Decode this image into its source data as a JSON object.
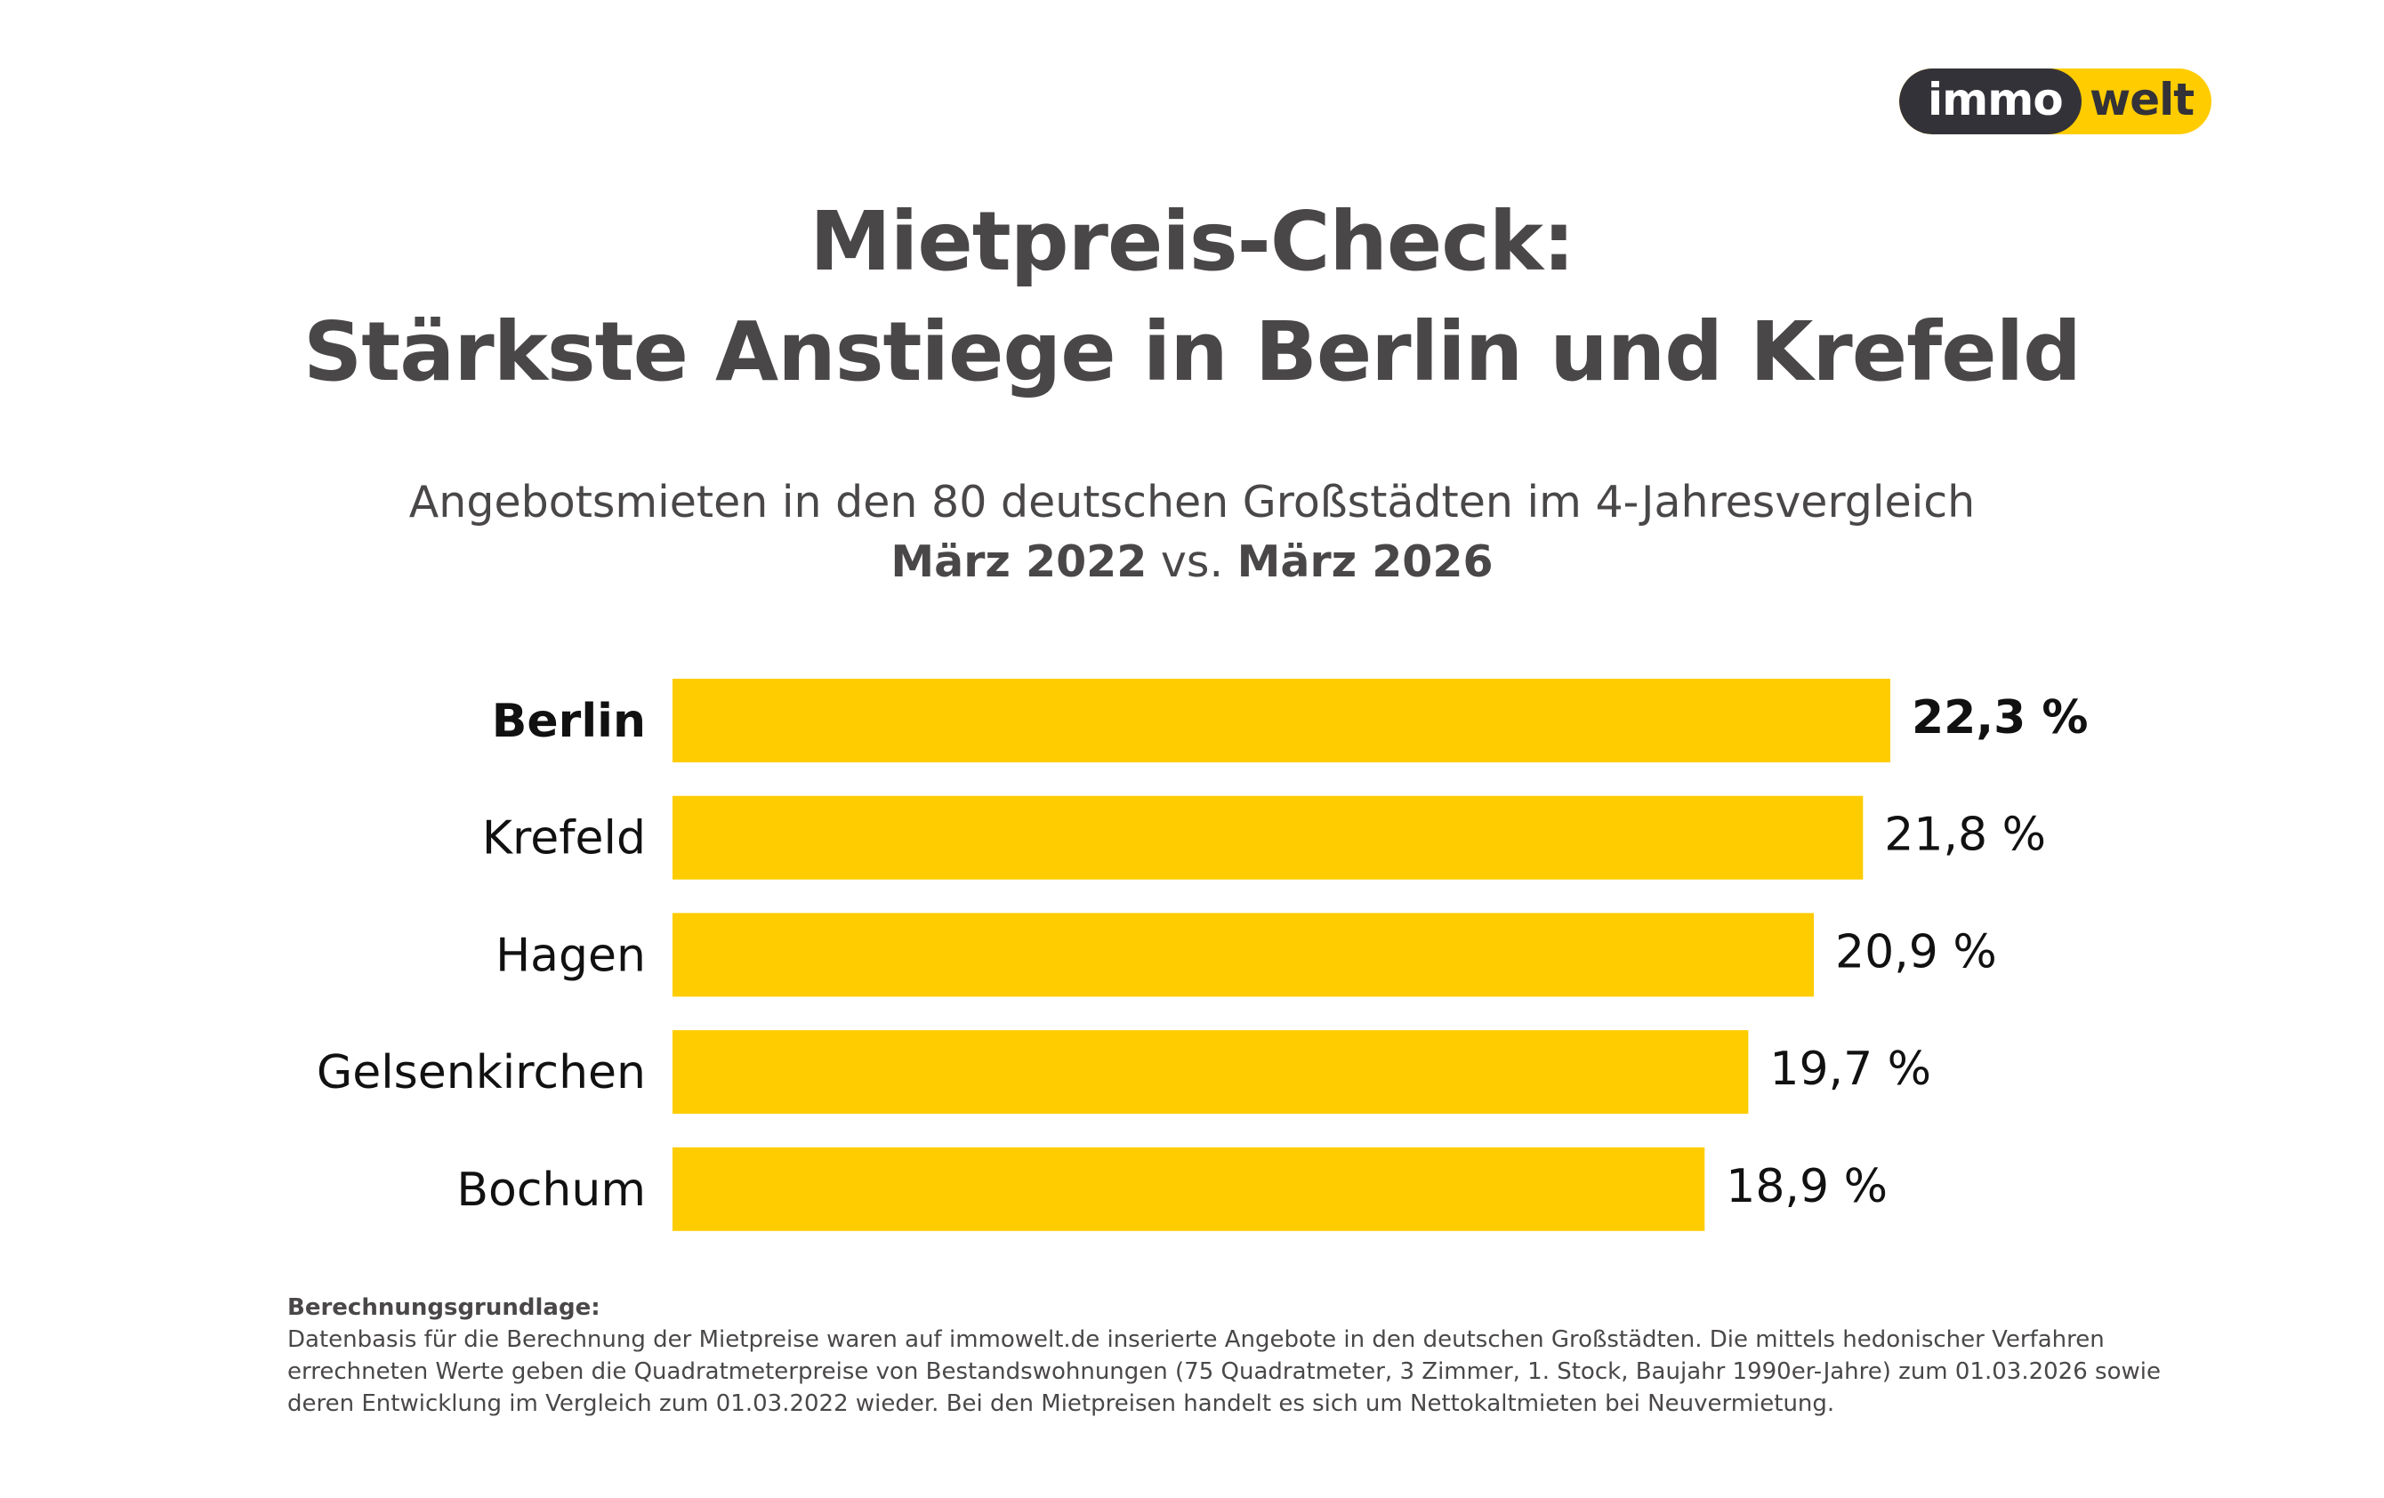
{
  "logo": {
    "part1": "immo",
    "part2": "welt",
    "colors": {
      "dark": "#333238",
      "yellow": "#ffcc00"
    }
  },
  "header": {
    "title_line1": "Mietpreis-Check:",
    "title_line2": "Stärkste Anstiege in Berlin und Krefeld",
    "subtitle_line1": "Angebotsmieten in den 80 deutschen Großstädten im 4-Jahresvergleich",
    "subtitle_from": "März 2022",
    "subtitle_vs": " vs. ",
    "subtitle_to": "März 2026"
  },
  "chart_data": {
    "type": "bar",
    "orientation": "horizontal",
    "title": "Mietpreis-Check: Stärkste Anstiege in Berlin und Krefeld",
    "subtitle": "Angebotsmieten in den 80 deutschen Großstädten im 4-Jahresvergleich, März 2022 vs. März 2026",
    "categories": [
      "Berlin",
      "Krefeld",
      "Hagen",
      "Gelsenkirchen",
      "Bochum"
    ],
    "values": [
      22.3,
      21.8,
      20.9,
      19.7,
      18.9
    ],
    "value_labels": [
      "22,3 %",
      "21,8 %",
      "20,9 %",
      "19,7 %",
      "18,9 %"
    ],
    "highlight": [
      "Berlin"
    ],
    "unit": "%",
    "xlabel": "",
    "ylabel": "",
    "xlim": [
      0,
      22.3
    ],
    "grid": false,
    "legend": "none",
    "bar_color": "#ffcc00",
    "label_color": "#111111"
  },
  "footnote": {
    "heading": "Berechnungsgrundlage:",
    "lines": [
      "Datenbasis für die Berechnung der Mietpreise waren auf immowelt.de inserierte Angebote in den deutschen Großstädten. Die mittels hedonischer Verfahren",
      "errechneten Werte geben die Quadratmeterpreise von Bestandswohnungen (75 Quadratmeter, 3 Zimmer, 1. Stock, Baujahr 1990er-Jahre) zum 01.03.2026 sowie",
      "deren Entwicklung im Vergleich zum 01.03.2022 wieder. Bei den Mietpreisen handelt es sich um Nettokaltmieten bei Neuvermietung."
    ]
  }
}
